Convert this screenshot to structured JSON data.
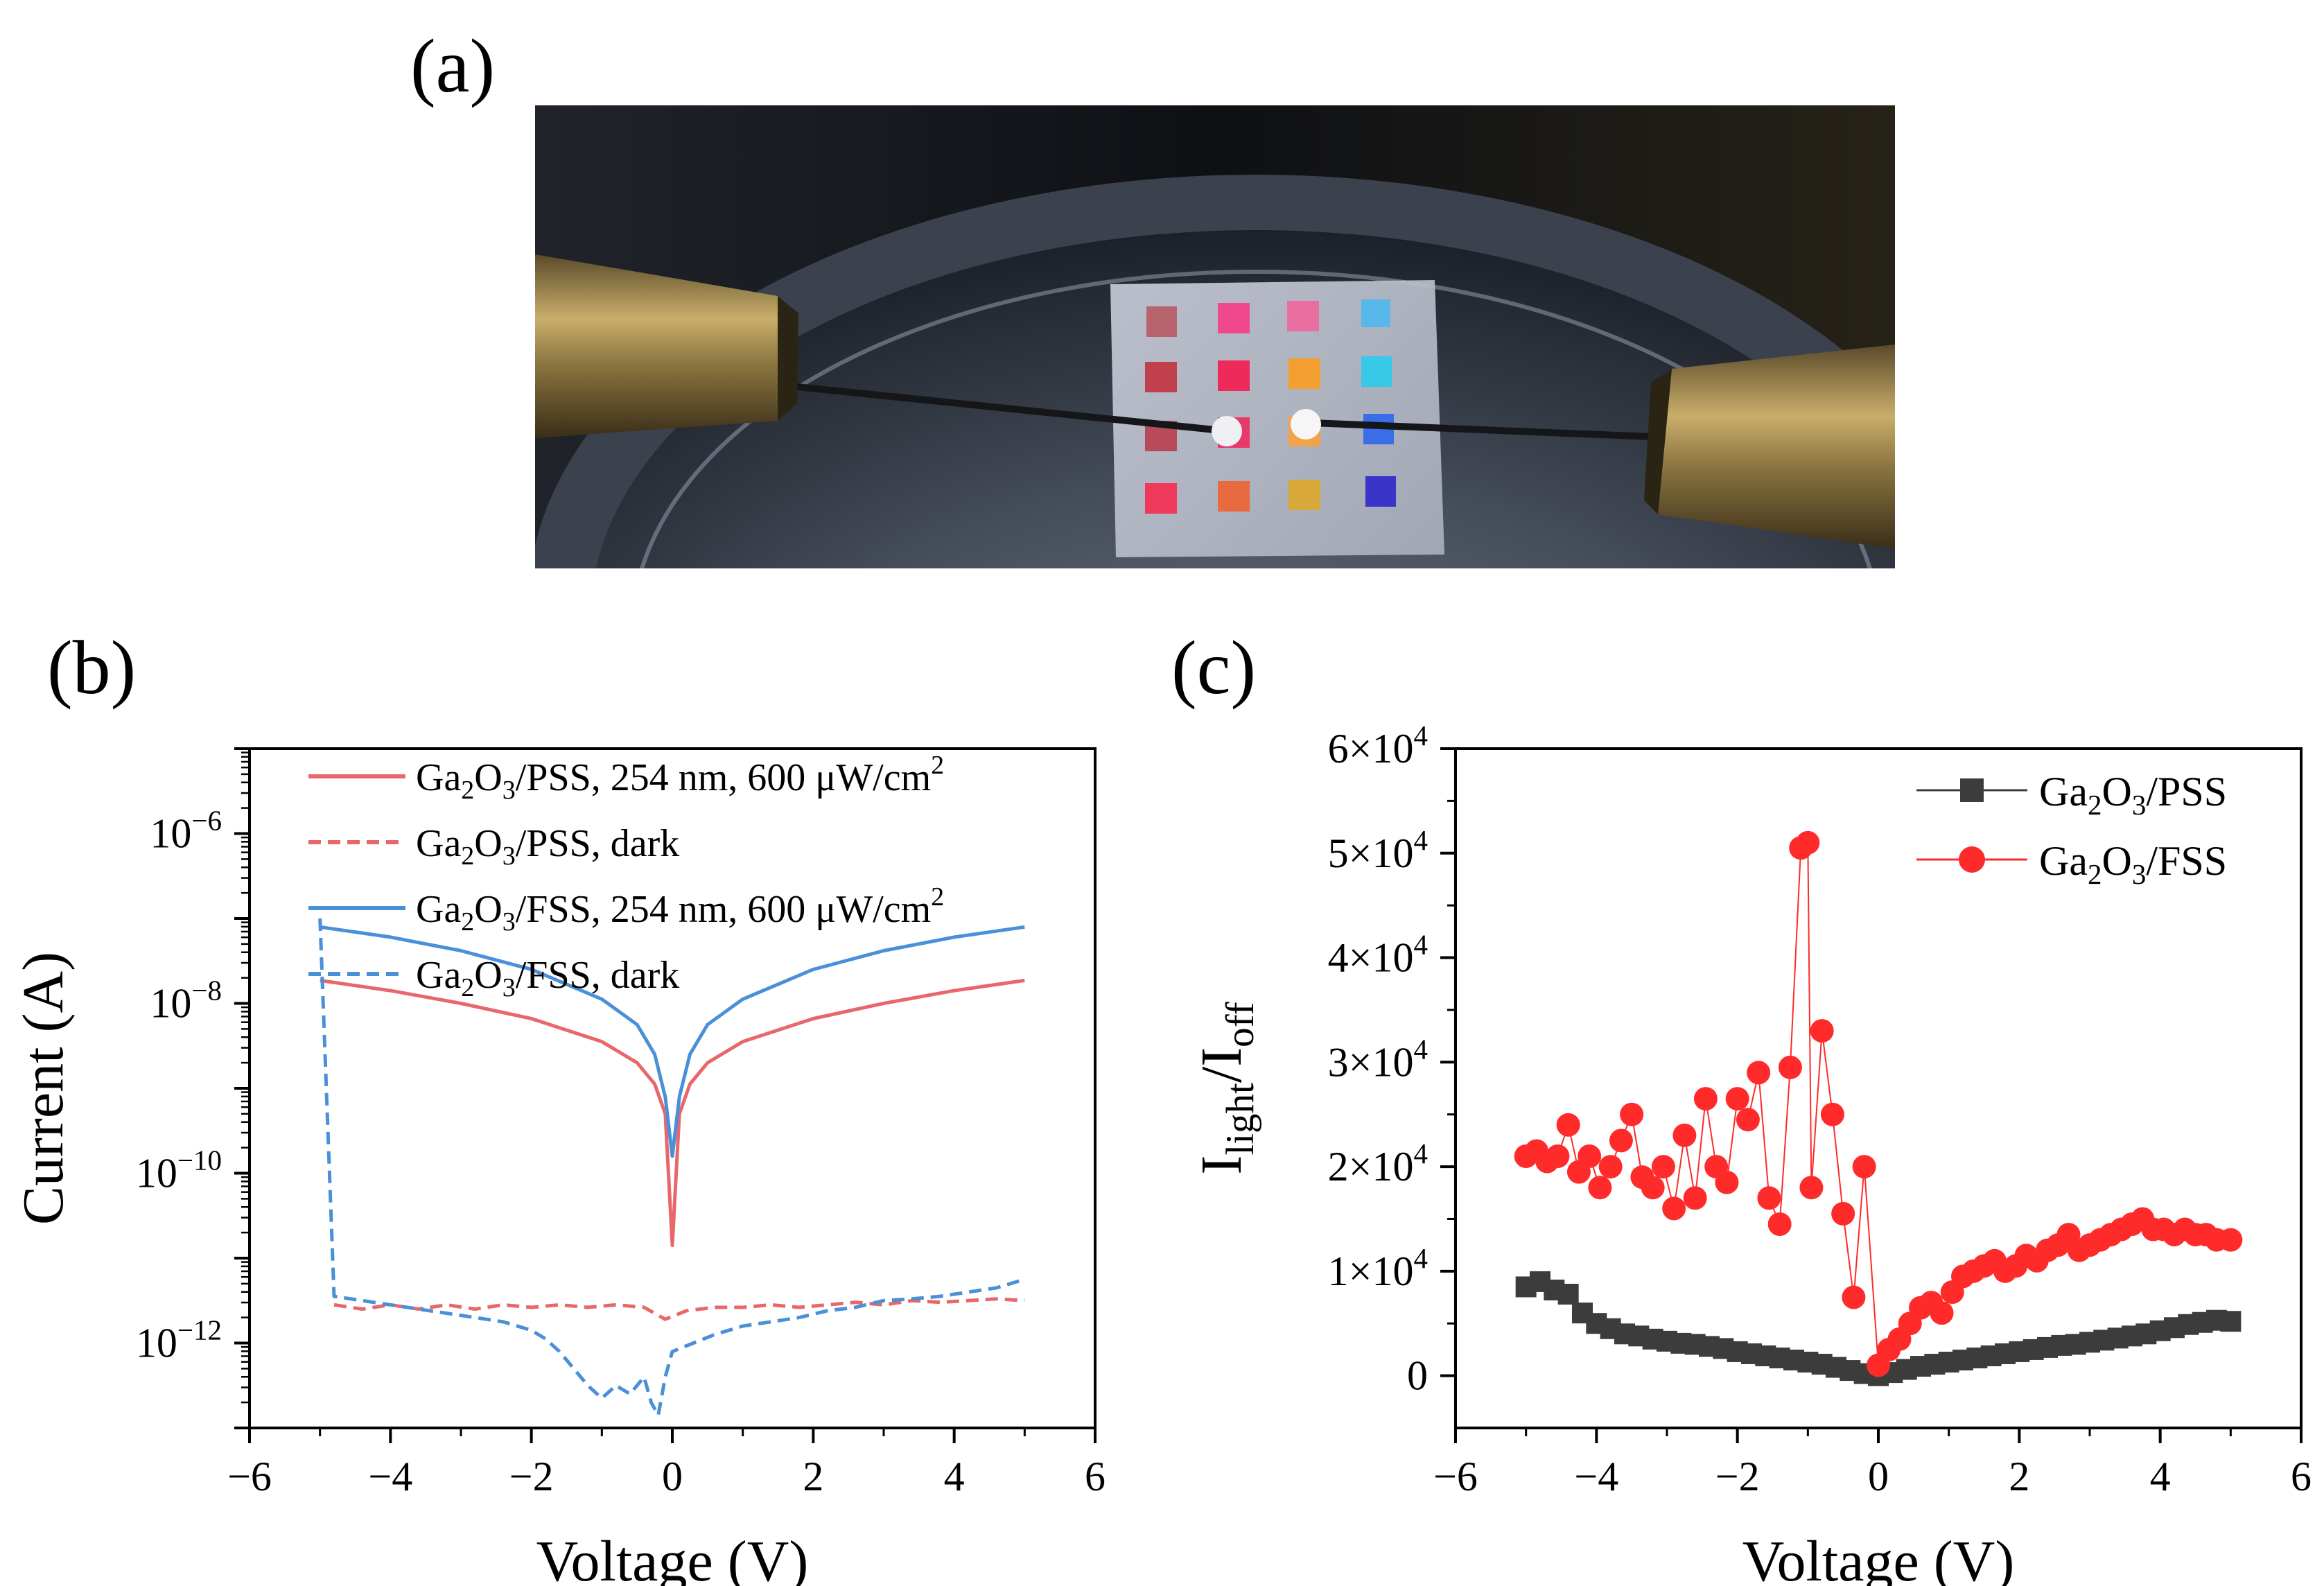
{
  "figure": {
    "label_a": "(a)",
    "label_b": "(b)",
    "label_c": "(c)"
  },
  "photo": {
    "description_icon": "device-photo-probe-station"
  },
  "colors": {
    "pss_red": "#e8676b",
    "fss_blue": "#4a90d9",
    "scatter_red": "#ff2a2a",
    "scatter_gray": "#3c3c3c"
  },
  "chart_data": [
    {
      "id": "b",
      "type": "line",
      "yscale": "log",
      "xlabel": "Voltage (V)",
      "ylabel": "Current (A)",
      "xlim": [
        -6,
        6
      ],
      "ylim_log10": [
        -13,
        -5
      ],
      "xticks": [
        -6,
        -4,
        -2,
        0,
        2,
        4,
        6
      ],
      "xtick_labels": [
        "−6",
        "−4",
        "−2",
        "0",
        "2",
        "4",
        "6"
      ],
      "yticks_log10": [
        -6,
        -8,
        -10,
        -12
      ],
      "ytick_labels": [
        {
          "base": "10",
          "exp": "−6"
        },
        {
          "base": "10",
          "exp": "−8"
        },
        {
          "base": "10",
          "exp": "−10"
        },
        {
          "base": "10",
          "exp": "−12"
        }
      ],
      "legend": [
        {
          "pre": "Ga",
          "sub1": "2",
          "mid": "O",
          "sub2": "3",
          "post": "/PSS, 254 nm, 600 μW/cm",
          "sup": "2",
          "style": "solid",
          "color": "#e8676b"
        },
        {
          "pre": "Ga",
          "sub1": "2",
          "mid": "O",
          "sub2": "3",
          "post": "/PSS, dark",
          "sup": "",
          "style": "dashed",
          "color": "#e8676b"
        },
        {
          "pre": "Ga",
          "sub1": "2",
          "mid": "O",
          "sub2": "3",
          "post": "/FSS, 254 nm, 600 μW/cm",
          "sup": "2",
          "style": "solid",
          "color": "#4a90d9"
        },
        {
          "pre": "Ga",
          "sub1": "2",
          "mid": "O",
          "sub2": "3",
          "post": "/FSS, dark",
          "sup": "",
          "style": "dashed",
          "color": "#4a90d9"
        }
      ],
      "series": [
        {
          "name": "Ga2O3/PSS, 254 nm, 600 μW/cm2",
          "style": "solid",
          "color": "#e8676b",
          "x": [
            -5,
            -4,
            -3,
            -2,
            -1,
            -0.5,
            -0.25,
            -0.1,
            0,
            0.1,
            0.25,
            0.5,
            1,
            2,
            3,
            4,
            5
          ],
          "log10y": [
            -7.73,
            -7.85,
            -8.0,
            -8.18,
            -8.45,
            -8.7,
            -8.95,
            -9.3,
            -10.85,
            -9.3,
            -8.95,
            -8.7,
            -8.45,
            -8.18,
            -8.0,
            -7.85,
            -7.73
          ]
        },
        {
          "name": "Ga2O3/PSS, dark",
          "style": "dashed",
          "color": "#e8676b",
          "x": [
            -4.8,
            -4.4,
            -4,
            -3.6,
            -3.2,
            -2.8,
            -2.4,
            -2,
            -1.6,
            -1.2,
            -0.8,
            -0.4,
            -0.1,
            0.2,
            0.6,
            1,
            1.4,
            1.8,
            2.2,
            2.6,
            3,
            3.4,
            3.8,
            4.2,
            4.6,
            5
          ],
          "log10y": [
            -11.55,
            -11.6,
            -11.55,
            -11.6,
            -11.55,
            -11.6,
            -11.55,
            -11.58,
            -11.55,
            -11.58,
            -11.55,
            -11.58,
            -11.72,
            -11.62,
            -11.58,
            -11.58,
            -11.55,
            -11.58,
            -11.55,
            -11.52,
            -11.55,
            -11.5,
            -11.52,
            -11.5,
            -11.48,
            -11.5
          ]
        },
        {
          "name": "Ga2O3/FSS, 254 nm, 600 μW/cm2",
          "style": "solid",
          "color": "#4a90d9",
          "x": [
            -5,
            -4,
            -3,
            -2,
            -1,
            -0.5,
            -0.25,
            -0.1,
            0,
            0.1,
            0.25,
            0.5,
            1,
            2,
            3,
            4,
            5
          ],
          "log10y": [
            -7.1,
            -7.22,
            -7.38,
            -7.6,
            -7.95,
            -8.25,
            -8.6,
            -9.1,
            -9.8,
            -9.1,
            -8.6,
            -8.25,
            -7.95,
            -7.6,
            -7.38,
            -7.22,
            -7.1
          ]
        },
        {
          "name": "Ga2O3/FSS, dark",
          "style": "dashed",
          "color": "#4a90d9",
          "x": [
            -5,
            -4.8,
            -4.4,
            -4,
            -3.6,
            -3.2,
            -2.8,
            -2.4,
            -2,
            -1.8,
            -1.6,
            -1.4,
            -1.2,
            -1.0,
            -0.8,
            -0.6,
            -0.4,
            -0.3,
            -0.2,
            -0.1,
            0,
            0.3,
            0.6,
            1,
            1.4,
            1.8,
            2.2,
            2.6,
            3,
            3.4,
            3.8,
            4.2,
            4.6,
            5
          ],
          "log10y": [
            -7.0,
            -11.45,
            -11.5,
            -11.55,
            -11.6,
            -11.65,
            -11.7,
            -11.75,
            -11.85,
            -11.95,
            -12.1,
            -12.3,
            -12.5,
            -12.65,
            -12.5,
            -12.6,
            -12.4,
            -12.7,
            -12.85,
            -12.4,
            -12.1,
            -12.0,
            -11.9,
            -11.8,
            -11.75,
            -11.7,
            -11.62,
            -11.58,
            -11.5,
            -11.48,
            -11.45,
            -11.4,
            -11.35,
            -11.25
          ]
        }
      ]
    },
    {
      "id": "c",
      "type": "scatter",
      "xlabel": "Voltage (V)",
      "ylabel": {
        "pre": "I",
        "sub1": "light",
        "mid": "/I",
        "sub2": "off"
      },
      "xlim": [
        -6,
        6
      ],
      "ylim": [
        -5000,
        60000
      ],
      "xticks": [
        -6,
        -4,
        -2,
        0,
        2,
        4,
        6
      ],
      "xtick_labels": [
        "−6",
        "−4",
        "−2",
        "0",
        "2",
        "4",
        "6"
      ],
      "yticks": [
        0,
        10000,
        20000,
        30000,
        40000,
        50000,
        60000
      ],
      "ytick_labels": [
        {
          "base": "0",
          "exp": ""
        },
        {
          "base": "1×10",
          "exp": "4"
        },
        {
          "base": "2×10",
          "exp": "4"
        },
        {
          "base": "3×10",
          "exp": "4"
        },
        {
          "base": "4×10",
          "exp": "4"
        },
        {
          "base": "5×10",
          "exp": "4"
        },
        {
          "base": "6×10",
          "exp": "4"
        }
      ],
      "legend": [
        {
          "pre": "Ga",
          "sub1": "2",
          "mid": "O",
          "sub2": "3",
          "post": "/PSS",
          "marker": "square",
          "color": "#3c3c3c"
        },
        {
          "pre": "Ga",
          "sub1": "2",
          "mid": "O",
          "sub2": "3",
          "post": "/FSS",
          "marker": "circle",
          "color": "#ff2a2a"
        }
      ],
      "series": [
        {
          "name": "Ga2O3/PSS",
          "marker": "square",
          "color": "#3c3c3c",
          "x": [
            -5,
            -4.8,
            -4.6,
            -4.4,
            -4.2,
            -4,
            -3.8,
            -3.6,
            -3.4,
            -3.2,
            -3,
            -2.8,
            -2.6,
            -2.4,
            -2.2,
            -2,
            -1.8,
            -1.6,
            -1.4,
            -1.2,
            -1,
            -0.8,
            -0.6,
            -0.4,
            -0.2,
            0,
            0.2,
            0.4,
            0.6,
            0.8,
            1,
            1.2,
            1.4,
            1.6,
            1.8,
            2,
            2.2,
            2.4,
            2.6,
            2.8,
            3,
            3.2,
            3.4,
            3.6,
            3.8,
            4,
            4.2,
            4.4,
            4.6,
            4.8,
            5
          ],
          "y": [
            8500,
            9000,
            8200,
            7800,
            6000,
            5000,
            4500,
            4000,
            3800,
            3500,
            3300,
            3100,
            3000,
            2800,
            2600,
            2300,
            2100,
            1900,
            1700,
            1500,
            1300,
            1100,
            800,
            500,
            200,
            0,
            300,
            600,
            900,
            1100,
            1300,
            1500,
            1700,
            1900,
            2100,
            2300,
            2500,
            2700,
            2900,
            3000,
            3200,
            3400,
            3600,
            3800,
            4000,
            4300,
            4600,
            4900,
            5100,
            5300,
            5200
          ]
        },
        {
          "name": "Ga2O3/FSS",
          "marker": "circle",
          "color": "#ff2a2a",
          "x": [
            -5,
            -4.85,
            -4.7,
            -4.55,
            -4.4,
            -4.25,
            -4.1,
            -3.95,
            -3.8,
            -3.65,
            -3.5,
            -3.35,
            -3.2,
            -3.05,
            -2.9,
            -2.75,
            -2.6,
            -2.45,
            -2.3,
            -2.15,
            -2.0,
            -1.85,
            -1.7,
            -1.55,
            -1.4,
            -1.25,
            -1.1,
            -1.0,
            -0.95,
            -0.8,
            -0.65,
            -0.5,
            -0.35,
            -0.2,
            0,
            0.15,
            0.3,
            0.45,
            0.6,
            0.75,
            0.9,
            1.05,
            1.2,
            1.35,
            1.5,
            1.65,
            1.8,
            1.95,
            2.1,
            2.25,
            2.4,
            2.55,
            2.7,
            2.85,
            3.0,
            3.15,
            3.3,
            3.45,
            3.6,
            3.75,
            3.9,
            4.05,
            4.2,
            4.35,
            4.5,
            4.65,
            4.8,
            5
          ],
          "y": [
            21000,
            21500,
            20500,
            21000,
            24000,
            19500,
            21000,
            18000,
            20000,
            22500,
            25000,
            19000,
            18000,
            20000,
            16000,
            23000,
            17000,
            26500,
            20000,
            18500,
            26500,
            24500,
            29000,
            17000,
            14500,
            29500,
            50500,
            51000,
            18000,
            33000,
            25000,
            15500,
            7500,
            20000,
            1000,
            2500,
            3500,
            5000,
            6500,
            7000,
            6000,
            8000,
            9500,
            10000,
            10500,
            11000,
            10000,
            10500,
            11500,
            11000,
            12000,
            12500,
            13500,
            12000,
            12500,
            13000,
            13500,
            14000,
            14500,
            15000,
            14000,
            14000,
            13500,
            14000,
            13500,
            13500,
            13000,
            13000
          ]
        }
      ]
    }
  ]
}
